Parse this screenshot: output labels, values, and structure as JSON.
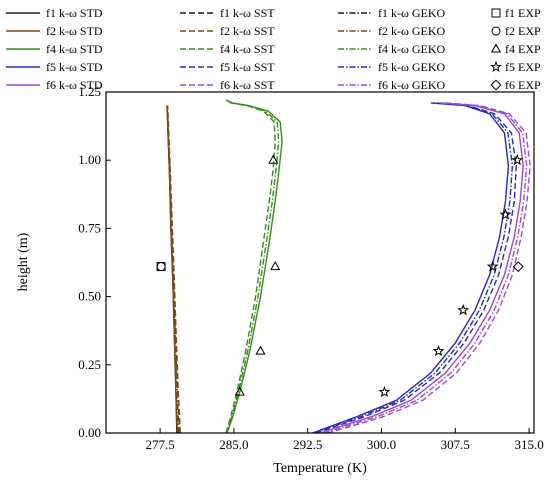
{
  "chart_data": {
    "type": "line",
    "xlabel": "Temperature (K)",
    "ylabel": "height (m)",
    "xlim": [
      272.0,
      315.5
    ],
    "ylim": [
      0.0,
      1.25
    ],
    "xticks": [
      "277.5",
      "285.0",
      "292.5",
      "300.0",
      "307.5",
      "315.0"
    ],
    "xtick_values": [
      277.5,
      285.0,
      292.5,
      300.0,
      307.5,
      315.0
    ],
    "yticks": [
      "0.00",
      "0.25",
      "0.50",
      "0.75",
      "1.00",
      "1.25"
    ],
    "ytick_values": [
      0.0,
      0.25,
      0.5,
      0.75,
      1.0,
      1.25
    ],
    "legend_position": "top",
    "legend": [
      [
        "f1 k-ω STD",
        "f1 k-ω SST",
        "f1 k-ω GEKO",
        "f1 EXP"
      ],
      [
        "f2 k-ω STD",
        "f2 k-ω SST",
        "f2 k-ω GEKO",
        "f2 EXP"
      ],
      [
        "f4 k-ω STD",
        "f4 k-ω SST",
        "f4 k-ω GEKO",
        "f4 EXP"
      ],
      [
        "f5 k-ω STD",
        "f5 k-ω SST",
        "f5 k-ω GEKO",
        "f5 EXP"
      ],
      [
        "f6 k-ω STD",
        "f6 k-ω SST",
        "f6 k-ω GEKO",
        "f6 EXP"
      ]
    ],
    "series": [
      {
        "group": "f1",
        "model": "STD",
        "color": "#1a1a1a",
        "dash": "solid",
        "x": [
          279.2,
          279.1,
          278.95,
          278.8,
          278.6,
          278.45,
          278.3,
          278.2
        ],
        "y": [
          0.0,
          0.15,
          0.35,
          0.55,
          0.75,
          0.95,
          1.1,
          1.2
        ]
      },
      {
        "group": "f1",
        "model": "SST",
        "color": "#1a1a1a",
        "dash": "dash",
        "x": [
          279.5,
          279.3,
          279.1,
          278.9,
          278.7,
          278.5,
          278.35,
          278.25
        ],
        "y": [
          0.0,
          0.15,
          0.35,
          0.55,
          0.75,
          0.95,
          1.1,
          1.2
        ]
      },
      {
        "group": "f1",
        "model": "GEKO",
        "color": "#1a1a1a",
        "dash": "dashdot",
        "x": [
          279.35,
          279.2,
          279.0,
          278.85,
          278.65,
          278.5,
          278.32,
          278.22
        ],
        "y": [
          0.0,
          0.15,
          0.35,
          0.55,
          0.75,
          0.95,
          1.1,
          1.2
        ]
      },
      {
        "group": "f2",
        "model": "STD",
        "color": "#7a4a18",
        "dash": "solid",
        "x": [
          279.25,
          279.1,
          278.95,
          278.8,
          278.6,
          278.45,
          278.3,
          278.2
        ],
        "y": [
          0.0,
          0.15,
          0.35,
          0.55,
          0.75,
          0.95,
          1.1,
          1.2
        ]
      },
      {
        "group": "f2",
        "model": "SST",
        "color": "#7a4a18",
        "dash": "dash",
        "x": [
          279.55,
          279.35,
          279.15,
          278.95,
          278.75,
          278.55,
          278.38,
          278.27
        ],
        "y": [
          0.0,
          0.15,
          0.35,
          0.55,
          0.75,
          0.95,
          1.1,
          1.2
        ]
      },
      {
        "group": "f2",
        "model": "GEKO",
        "color": "#7a4a18",
        "dash": "dashdot",
        "x": [
          279.4,
          279.25,
          279.05,
          278.85,
          278.65,
          278.5,
          278.34,
          278.24
        ],
        "y": [
          0.0,
          0.15,
          0.35,
          0.55,
          0.75,
          0.95,
          1.1,
          1.2
        ]
      },
      {
        "group": "f4",
        "model": "STD",
        "color": "#3a8a1a",
        "dash": "solid",
        "x": [
          284.3,
          284.8,
          285.6,
          286.6,
          287.7,
          288.6,
          289.2,
          289.6,
          289.9,
          289.7,
          288.5,
          286.5,
          284.8,
          284.3
        ],
        "y": [
          0.0,
          0.05,
          0.15,
          0.3,
          0.5,
          0.7,
          0.85,
          0.97,
          1.07,
          1.14,
          1.18,
          1.2,
          1.21,
          1.22
        ]
      },
      {
        "group": "f4",
        "model": "SST",
        "color": "#3a8a1a",
        "dash": "dash",
        "x": [
          284.2,
          284.6,
          285.3,
          286.2,
          287.2,
          288.0,
          288.6,
          289.0,
          289.2,
          289.1,
          288.0,
          286.3,
          284.7,
          284.2
        ],
        "y": [
          0.0,
          0.05,
          0.15,
          0.3,
          0.5,
          0.7,
          0.85,
          0.97,
          1.07,
          1.14,
          1.18,
          1.2,
          1.21,
          1.22
        ]
      },
      {
        "group": "f4",
        "model": "GEKO",
        "color": "#3a8a1a",
        "dash": "dashdot",
        "x": [
          284.25,
          284.7,
          285.45,
          286.4,
          287.45,
          288.3,
          288.9,
          289.3,
          289.55,
          289.4,
          288.2,
          286.4,
          284.75,
          284.25
        ],
        "y": [
          0.0,
          0.05,
          0.15,
          0.3,
          0.5,
          0.7,
          0.85,
          0.97,
          1.07,
          1.14,
          1.18,
          1.2,
          1.21,
          1.22
        ]
      },
      {
        "group": "f5",
        "model": "STD",
        "color": "#2828c0",
        "dash": "solid",
        "x": [
          293.0,
          294.5,
          297.5,
          301.5,
          305.0,
          307.5,
          309.5,
          311.0,
          312.0,
          312.6,
          312.9,
          312.5,
          311.0,
          308.5,
          305.0
        ],
        "y": [
          0.0,
          0.02,
          0.06,
          0.12,
          0.22,
          0.33,
          0.45,
          0.58,
          0.72,
          0.85,
          0.98,
          1.1,
          1.17,
          1.2,
          1.21
        ]
      },
      {
        "group": "f5",
        "model": "SST",
        "color": "#2828c0",
        "dash": "dash",
        "x": [
          293.3,
          295.0,
          298.3,
          302.3,
          305.9,
          308.4,
          310.4,
          311.9,
          312.9,
          313.5,
          313.7,
          313.2,
          311.5,
          308.8,
          305.5
        ],
        "y": [
          0.0,
          0.02,
          0.06,
          0.12,
          0.22,
          0.33,
          0.45,
          0.58,
          0.72,
          0.85,
          0.98,
          1.1,
          1.17,
          1.2,
          1.21
        ]
      },
      {
        "group": "f5",
        "model": "GEKO",
        "color": "#2828c0",
        "dash": "dashdot",
        "x": [
          293.15,
          294.75,
          297.9,
          301.9,
          305.45,
          307.95,
          309.95,
          311.45,
          312.45,
          313.05,
          313.3,
          312.85,
          311.25,
          308.65,
          305.25
        ],
        "y": [
          0.0,
          0.02,
          0.06,
          0.12,
          0.22,
          0.33,
          0.45,
          0.58,
          0.72,
          0.85,
          0.98,
          1.1,
          1.17,
          1.2,
          1.21
        ]
      },
      {
        "group": "f6",
        "model": "STD",
        "color": "#9a48d8",
        "dash": "solid",
        "x": [
          293.8,
          295.5,
          299.0,
          303.0,
          306.5,
          309.0,
          311.0,
          312.5,
          313.5,
          314.1,
          314.4,
          314.0,
          312.5,
          309.5,
          306.0
        ],
        "y": [
          0.0,
          0.02,
          0.06,
          0.12,
          0.22,
          0.33,
          0.45,
          0.58,
          0.72,
          0.85,
          0.98,
          1.1,
          1.17,
          1.2,
          1.21
        ]
      },
      {
        "group": "f6",
        "model": "SST",
        "color": "#9a48d8",
        "dash": "dash",
        "x": [
          294.5,
          296.5,
          300.2,
          304.2,
          307.6,
          310.0,
          311.9,
          313.3,
          314.2,
          314.8,
          315.1,
          314.7,
          313.0,
          310.0,
          306.5
        ],
        "y": [
          0.0,
          0.02,
          0.06,
          0.12,
          0.22,
          0.33,
          0.45,
          0.58,
          0.72,
          0.85,
          0.98,
          1.1,
          1.17,
          1.2,
          1.21
        ]
      },
      {
        "group": "f6",
        "model": "GEKO",
        "color": "#9a48d8",
        "dash": "dashdot",
        "x": [
          294.1,
          296.0,
          299.6,
          303.6,
          307.05,
          309.5,
          311.45,
          312.9,
          313.85,
          314.45,
          314.75,
          314.35,
          312.75,
          309.75,
          306.25
        ],
        "y": [
          0.0,
          0.02,
          0.06,
          0.12,
          0.22,
          0.33,
          0.45,
          0.58,
          0.72,
          0.85,
          0.98,
          1.1,
          1.17,
          1.2,
          1.21
        ]
      }
    ],
    "experimental": [
      {
        "group": "f1",
        "marker": "square",
        "points": [
          {
            "x": 277.6,
            "y": 0.61
          }
        ]
      },
      {
        "group": "f2",
        "marker": "circle",
        "points": [
          {
            "x": 277.6,
            "y": 0.61
          }
        ]
      },
      {
        "group": "f4",
        "marker": "triangle",
        "points": [
          {
            "x": 285.6,
            "y": 0.15
          },
          {
            "x": 287.7,
            "y": 0.3
          },
          {
            "x": 289.2,
            "y": 0.61
          },
          {
            "x": 289.0,
            "y": 1.0
          }
        ]
      },
      {
        "group": "f5",
        "marker": "star",
        "points": [
          {
            "x": 300.3,
            "y": 0.15
          },
          {
            "x": 305.8,
            "y": 0.3
          },
          {
            "x": 308.3,
            "y": 0.45
          },
          {
            "x": 311.3,
            "y": 0.61
          },
          {
            "x": 312.6,
            "y": 0.8
          },
          {
            "x": 313.8,
            "y": 1.0
          }
        ]
      },
      {
        "group": "f6",
        "marker": "diamond",
        "points": [
          {
            "x": 313.9,
            "y": 0.61
          }
        ]
      }
    ]
  }
}
